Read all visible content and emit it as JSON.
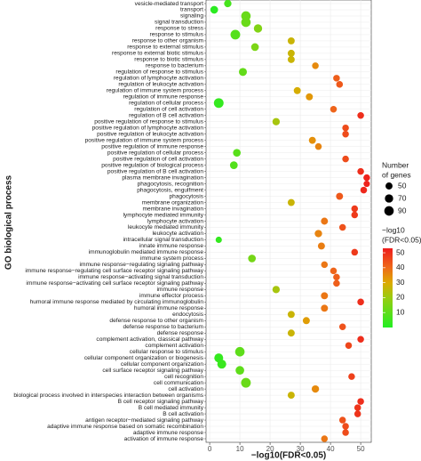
{
  "chart_data": {
    "type": "dot",
    "categories": [
      "vesicle-mediated transport",
      "transport",
      "signaling",
      "signal transduction",
      "response to stress",
      "response to stimulus",
      "response to other organism",
      "response to external stimulus",
      "response to external biotic stimulus",
      "response to biotic stimulus",
      "response to bacterium",
      "regulation of response to stimulus",
      "regulation of lymphocyte activation",
      "regulation of leukocyte activation",
      "regulation of immune system process",
      "regulation of immune response",
      "regulation of cellular process",
      "regulation of cell activation",
      "regulation of B cell activation",
      "positive regulation of response to stimulus",
      "positive regulation of lymphocyte activation",
      "positive regulation of leukocyte activation",
      "positive regulation of immune system process",
      "positive regulation of immune response",
      "positive regulation of cellular process",
      "positive regulation of cell activation",
      "positive regulation of biological process",
      "positive regulation of B cell activation",
      "plasma membrane invagination",
      "phagocytosis, recognition",
      "phagocytosis, engulfment",
      "phagocytosis",
      "membrane organization",
      "membrane invagination",
      "lymphocyte mediated immunity",
      "lymphocyte activation",
      "leukocyte mediated immunity",
      "leukocyte activation",
      "intracellular signal transduction",
      "innate immune response",
      "immunoglobulin mediated immune response",
      "immune system process",
      "immune response−regulating signaling pathway",
      "immune response−regulating cell surface receptor signaling pathway",
      "immune response−activating signal transduction",
      "immune response−activating cell surface receptor signaling pathway",
      "immune response",
      "immune effector process",
      "humoral immune response mediated by circulating immunoglobulin",
      "humoral immune response",
      "endocytosis",
      "defense response to other organism",
      "defense response to bacterium",
      "defense response",
      "complement activation, classical pathway",
      "complement activation",
      "cellular response to stimulus",
      "cellular component organization or biogenesis",
      "cellular component organization",
      "cell surface receptor signaling pathway",
      "cell recognition",
      "cell communication",
      "cell activation",
      "biological process involved in interspecies interaction between organisms",
      "B cell receptor signaling pathway",
      "B cell mediated immunity",
      "B cell activation",
      "antigen receptor−mediated signaling pathway",
      "adaptive immune response based on somatic recombination",
      "adaptive immune response",
      "activation of immune response"
    ],
    "values": [
      6,
      1.5,
      12,
      12,
      16,
      8.5,
      27,
      15,
      27,
      27,
      35,
      11,
      42,
      43,
      29,
      33,
      3,
      41,
      50,
      22,
      45,
      45,
      34,
      36,
      9,
      45,
      8,
      50,
      52,
      52,
      51,
      43,
      27,
      48,
      48,
      38,
      44,
      36,
      3,
      37,
      48,
      14,
      38,
      41,
      42,
      42,
      22,
      38,
      50,
      38,
      27,
      32,
      44,
      27,
      50,
      46,
      10,
      3,
      4,
      10,
      47,
      12,
      35,
      27,
      50,
      49,
      49,
      44,
      45,
      45,
      38
    ],
    "sizes": [
      55,
      60,
      90,
      90,
      70,
      95,
      50,
      60,
      50,
      50,
      45,
      65,
      45,
      45,
      50,
      50,
      95,
      45,
      45,
      55,
      45,
      45,
      50,
      45,
      60,
      45,
      60,
      45,
      45,
      40,
      45,
      50,
      50,
      45,
      45,
      50,
      45,
      55,
      40,
      50,
      45,
      60,
      45,
      45,
      45,
      45,
      55,
      50,
      45,
      50,
      50,
      50,
      45,
      50,
      45,
      45,
      90,
      80,
      80,
      75,
      45,
      95,
      55,
      50,
      45,
      45,
      45,
      45,
      45,
      45,
      45
    ],
    "x_label": "−log10(FDR<0.05)",
    "y_label": "GO biological process",
    "xlim": [
      -1.2,
      53.5
    ],
    "xticks": [
      0,
      10,
      20,
      30,
      40,
      50
    ],
    "grid": true,
    "size_legend": {
      "title": [
        "Number",
        "of genes"
      ],
      "values": [
        50,
        70,
        90
      ]
    },
    "color_legend": {
      "title": [
        "−log10",
        "(FDR<0.05)"
      ],
      "ticks": [
        50,
        40,
        30,
        20,
        10
      ],
      "lim": [
        0,
        53
      ],
      "stops": [
        0,
        20,
        30,
        40,
        53
      ],
      "colors": [
        "#22ee22",
        "#99cc11",
        "#ddaa00",
        "#ee6a1a",
        "#ee1c1c"
      ]
    }
  }
}
